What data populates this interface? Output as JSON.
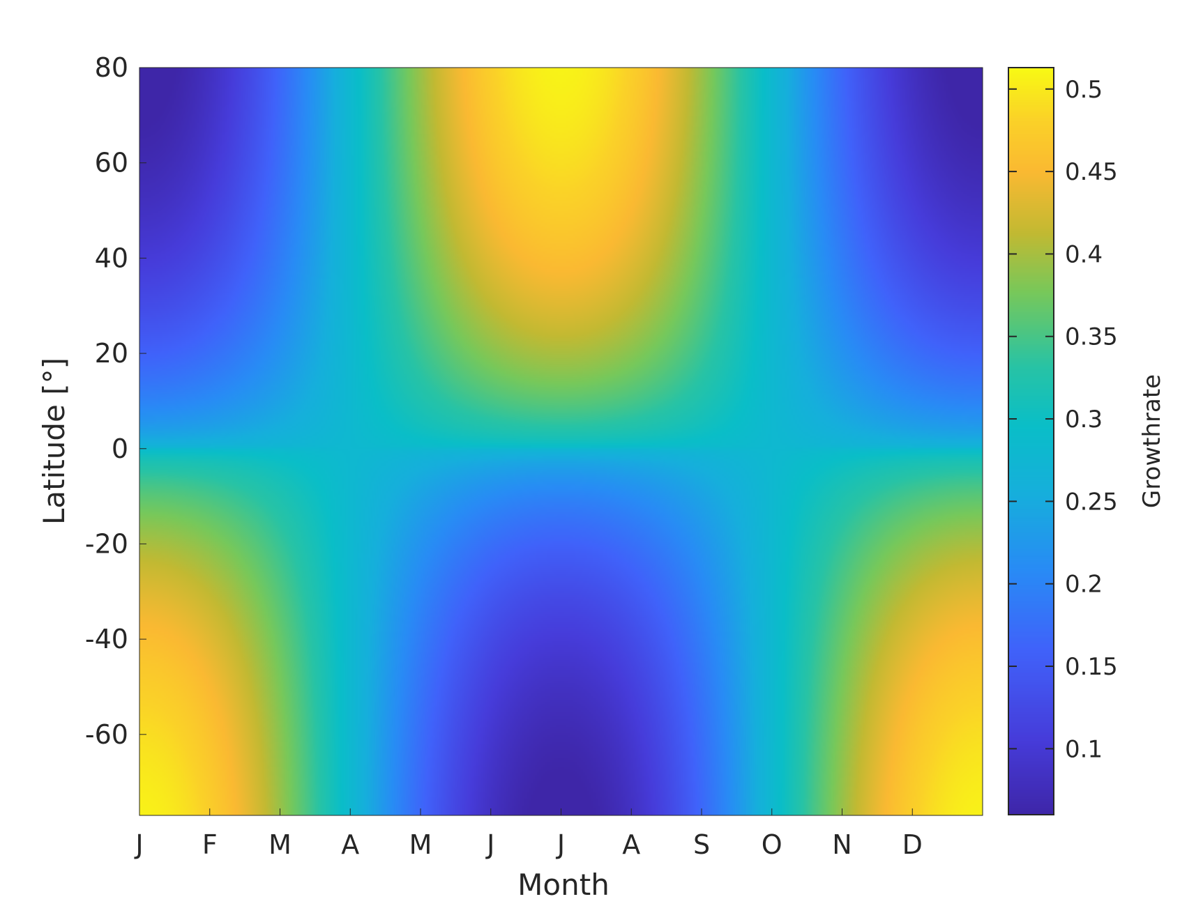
{
  "chart_data": {
    "type": "heatmap",
    "xlabel": "Month",
    "ylabel": "Latitude [°]",
    "x_tick_labels": [
      "J",
      "F",
      "M",
      "A",
      "M",
      "J",
      "J",
      "A",
      "S",
      "O",
      "N",
      "D"
    ],
    "y_ticks": [
      80,
      60,
      40,
      20,
      0,
      -20,
      -40,
      -60
    ],
    "y_tick_labels": [
      "80",
      "60",
      "40",
      "20",
      "0",
      "-20",
      "-40",
      "-60"
    ],
    "ylim": [
      -77,
      80
    ],
    "xlim": [
      1,
      13
    ],
    "field": "growth rate ≈ 0.28 + 0.23 · sign(lat) · |sin(lat)|^0.6 · cos(2π·(month − 7)/12)",
    "sample_values": [
      {
        "month": "J",
        "latitude": 80,
        "value": 0.06
      },
      {
        "month": "J",
        "latitude": -77,
        "value": 0.51
      },
      {
        "month": "J (Jul)",
        "latitude": 80,
        "value": 0.51
      },
      {
        "month": "J (Jul)",
        "latitude": -77,
        "value": 0.06
      },
      {
        "month": "A",
        "latitude": 0,
        "value": 0.28
      },
      {
        "month": "O",
        "latitude": 0,
        "value": 0.28
      }
    ],
    "colorbar": {
      "label": "Growthrate",
      "ticks": [
        0.5,
        0.45,
        0.4,
        0.35,
        0.3,
        0.25,
        0.2,
        0.15,
        0.1
      ],
      "tick_labels": [
        "0.5",
        "0.45",
        "0.4",
        "0.35",
        "0.3",
        "0.25",
        "0.2",
        "0.15",
        "0.1"
      ],
      "range": [
        0.06,
        0.513
      ],
      "colormap": "parula"
    }
  }
}
